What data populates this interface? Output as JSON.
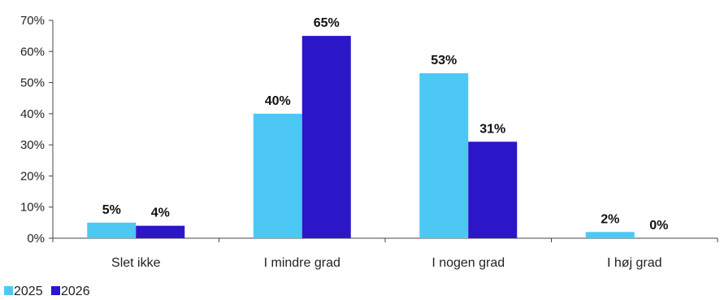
{
  "chart_data": {
    "type": "bar",
    "categories": [
      "Slet ikke",
      "I mindre grad",
      "I nogen grad",
      "I høj grad"
    ],
    "series": [
      {
        "name": "2025",
        "values": [
          5,
          40,
          53,
          2
        ],
        "color": "#4DC8F5"
      },
      {
        "name": "2026",
        "values": [
          4,
          65,
          31,
          0
        ],
        "color": "#2B16C8"
      }
    ],
    "ylim": [
      0,
      70
    ],
    "yticks": [
      0,
      10,
      20,
      30,
      40,
      50,
      60,
      70
    ],
    "ytick_labels": [
      "0%",
      "10%",
      "20%",
      "30%",
      "40%",
      "50%",
      "60%",
      "70%"
    ],
    "data_labels": [
      [
        "5%",
        "40%",
        "53%",
        "2%"
      ],
      [
        "4%",
        "65%",
        "31%",
        "0%"
      ]
    ],
    "grid": false,
    "legend_position": "bottom-left"
  }
}
